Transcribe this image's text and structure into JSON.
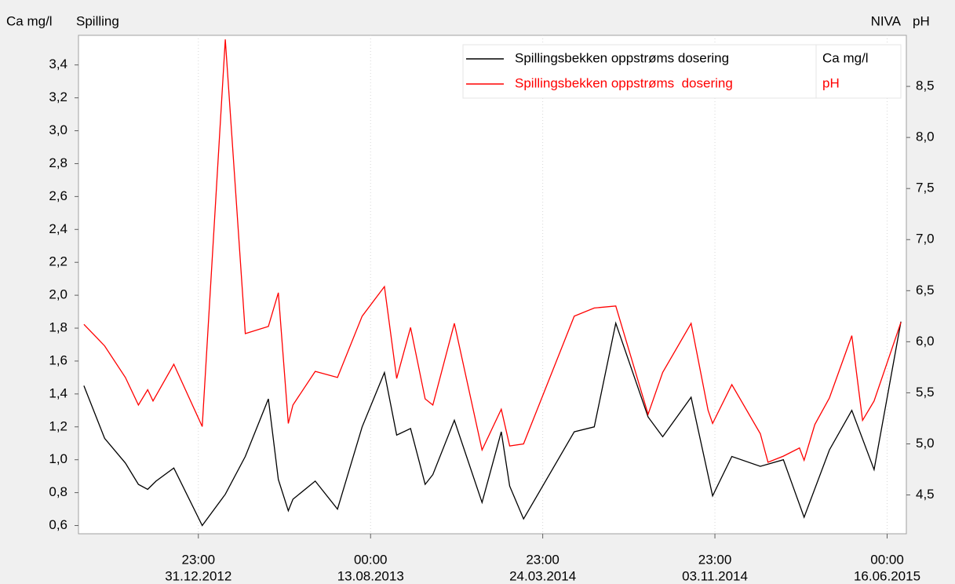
{
  "chart_data": {
    "type": "line",
    "title": "Spilling",
    "source": "NIVA",
    "ylabel": "Ca mg/l",
    "y2label": "pH",
    "xlim": [
      "2012-07-29",
      "2015-07-11"
    ],
    "xticks": [
      {
        "value": "2012-12-31T23:00",
        "label": [
          "23:00",
          "31.12.2012"
        ]
      },
      {
        "value": "2013-08-13T00:00",
        "label": [
          "00:00",
          "13.08.2013"
        ]
      },
      {
        "value": "2014-03-24T23:00",
        "label": [
          "23:00",
          "24.03.2014"
        ]
      },
      {
        "value": "2014-11-03T23:00",
        "label": [
          "23:00",
          "03.11.2014"
        ]
      },
      {
        "value": "2015-06-16T00:00",
        "label": [
          "00:00",
          "16.06.2015"
        ]
      }
    ],
    "ylim": [
      0.55,
      3.58
    ],
    "yticks": [
      {
        "value": 0.6,
        "label": "0,6"
      },
      {
        "value": 0.8,
        "label": "0,8"
      },
      {
        "value": 1.0,
        "label": "1,0"
      },
      {
        "value": 1.2,
        "label": "1,2"
      },
      {
        "value": 1.4,
        "label": "1,4"
      },
      {
        "value": 1.6,
        "label": "1,6"
      },
      {
        "value": 1.8,
        "label": "1,8"
      },
      {
        "value": 2.0,
        "label": "2,0"
      },
      {
        "value": 2.2,
        "label": "2,2"
      },
      {
        "value": 2.4,
        "label": "2,4"
      },
      {
        "value": 2.6,
        "label": "2,6"
      },
      {
        "value": 2.8,
        "label": "2,8"
      },
      {
        "value": 3.0,
        "label": "3,0"
      },
      {
        "value": 3.2,
        "label": "3,2"
      },
      {
        "value": 3.4,
        "label": "3,4"
      }
    ],
    "y2lim": [
      4.12,
      9.0
    ],
    "y2ticks": [
      {
        "value": 4.5,
        "label": "4,5"
      },
      {
        "value": 5.0,
        "label": "5,0"
      },
      {
        "value": 5.5,
        "label": "5,5"
      },
      {
        "value": 6.0,
        "label": "6,0"
      },
      {
        "value": 6.5,
        "label": "6,5"
      },
      {
        "value": 7.0,
        "label": "7,0"
      },
      {
        "value": 7.5,
        "label": "7,5"
      },
      {
        "value": 8.0,
        "label": "8,0"
      },
      {
        "value": 8.5,
        "label": "8,5"
      }
    ],
    "legend": "upper right",
    "series": [
      {
        "name": "Spillingsbekken oppstrøms dosering",
        "unit": "Ca mg/l",
        "color": "#000000",
        "axis": "y",
        "x": [
          "2012-08-05",
          "2012-09-01",
          "2012-09-28",
          "2012-10-15",
          "2012-10-27",
          "2012-11-07",
          "2012-11-30",
          "2013-01-06",
          "2013-02-05",
          "2013-03-03",
          "2013-04-02",
          "2013-04-15",
          "2013-04-28",
          "2013-05-04",
          "2013-06-02",
          "2013-07-01",
          "2013-08-02",
          "2013-08-31",
          "2013-09-16",
          "2013-10-04",
          "2013-10-23",
          "2013-11-02",
          "2013-11-30",
          "2014-01-05",
          "2014-01-30",
          "2014-02-10",
          "2014-02-28",
          "2014-05-05",
          "2014-05-31",
          "2014-06-28",
          "2014-08-09",
          "2014-08-28",
          "2014-10-04",
          "2014-11-01",
          "2014-11-26",
          "2015-01-02",
          "2015-02-01",
          "2015-02-28",
          "2015-04-02",
          "2015-05-01",
          "2015-05-30",
          "2015-07-04"
        ],
        "values": [
          1.45,
          1.13,
          0.98,
          0.85,
          0.82,
          0.87,
          0.95,
          0.6,
          0.79,
          1.02,
          1.37,
          0.88,
          0.69,
          0.76,
          0.87,
          0.7,
          1.2,
          1.53,
          1.15,
          1.19,
          0.85,
          0.91,
          1.24,
          0.74,
          1.17,
          0.84,
          0.64,
          1.17,
          1.2,
          1.83,
          1.26,
          1.14,
          1.38,
          0.78,
          1.02,
          0.96,
          1.0,
          0.65,
          1.06,
          1.3,
          0.94,
          1.84
        ]
      },
      {
        "name": "Spillingsbekken oppstrøms  dosering",
        "unit": "pH",
        "color": "#ff0000",
        "axis": "y2",
        "x": [
          "2012-08-05",
          "2012-09-01",
          "2012-09-28",
          "2012-10-15",
          "2012-10-27",
          "2012-11-03",
          "2012-11-30",
          "2013-01-06",
          "2013-02-05",
          "2013-03-03",
          "2013-04-02",
          "2013-04-15",
          "2013-04-28",
          "2013-05-04",
          "2013-06-02",
          "2013-07-01",
          "2013-08-02",
          "2013-08-31",
          "2013-09-16",
          "2013-10-04",
          "2013-10-23",
          "2013-11-02",
          "2013-11-30",
          "2014-01-05",
          "2014-01-30",
          "2014-02-10",
          "2014-02-28",
          "2014-05-05",
          "2014-05-31",
          "2014-06-28",
          "2014-08-09",
          "2014-08-28",
          "2014-10-04",
          "2014-10-26",
          "2014-11-01",
          "2014-11-26",
          "2015-01-02",
          "2015-01-12",
          "2015-02-01",
          "2015-02-22",
          "2015-02-28",
          "2015-03-14",
          "2015-04-02",
          "2015-05-01",
          "2015-05-15",
          "2015-05-30",
          "2015-07-04"
        ],
        "values": [
          6.17,
          5.96,
          5.65,
          5.38,
          5.53,
          5.42,
          5.78,
          5.17,
          8.96,
          6.08,
          6.15,
          6.48,
          5.2,
          5.38,
          5.71,
          5.65,
          6.25,
          6.54,
          5.64,
          6.14,
          5.44,
          5.38,
          6.18,
          4.94,
          5.34,
          4.98,
          5.0,
          6.25,
          6.33,
          6.35,
          5.29,
          5.7,
          6.18,
          5.33,
          5.2,
          5.58,
          5.1,
          4.82,
          4.88,
          4.96,
          4.84,
          5.19,
          5.45,
          6.06,
          5.23,
          5.42,
          6.19
        ]
      }
    ]
  }
}
